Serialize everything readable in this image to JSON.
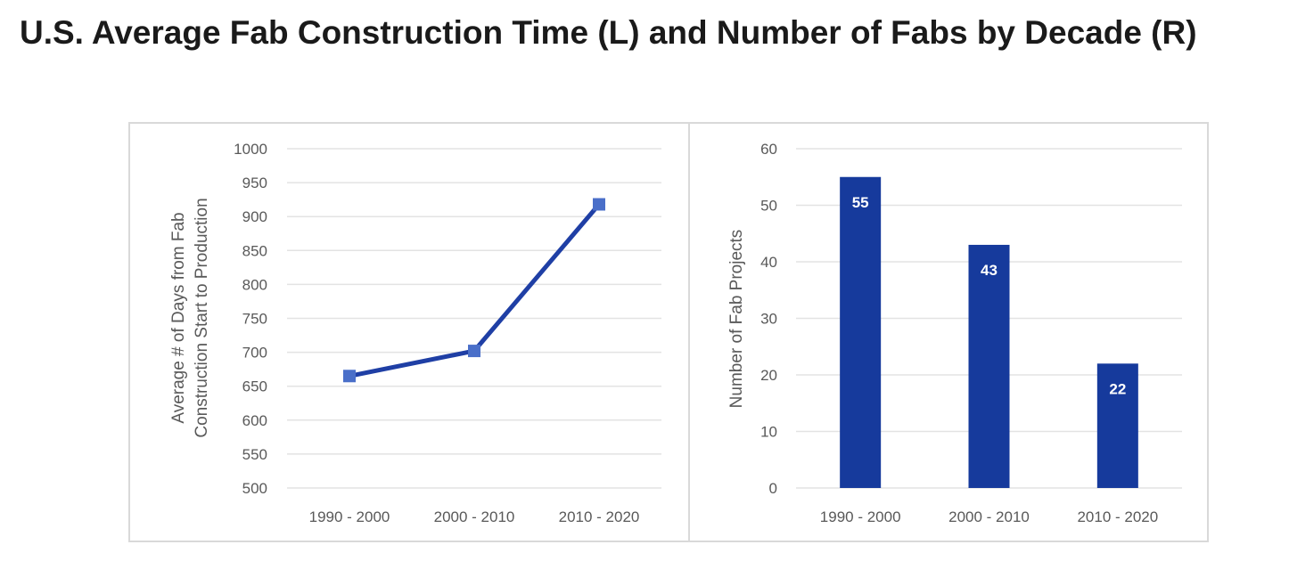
{
  "title": "U.S. Average Fab Construction Time (L) and Number of Fabs by Decade (R)",
  "colors": {
    "line": "#1f3fa5",
    "marker": "#4a6fc9",
    "bar": "#163a9c",
    "grid": "#e3e3e3",
    "text": "#595959"
  },
  "chart_data": [
    {
      "type": "line",
      "categories": [
        "1990 - 2000",
        "2000 - 2010",
        "2010 - 2020"
      ],
      "series": [
        {
          "values": [
            665,
            702,
            918
          ]
        }
      ],
      "ylabel_lines": [
        "Average # of Days from Fab",
        "Construction Start to Production"
      ],
      "ylim": [
        500,
        1000
      ],
      "yticks": [
        500,
        550,
        600,
        650,
        700,
        750,
        800,
        850,
        900,
        950,
        1000
      ],
      "grid": true
    },
    {
      "type": "bar",
      "categories": [
        "1990 - 2000",
        "2000 - 2010",
        "2010 - 2020"
      ],
      "values": [
        55,
        43,
        22
      ],
      "data_labels": [
        "55",
        "43",
        "22"
      ],
      "ylabel": "Number of Fab Projects",
      "ylim": [
        0,
        60
      ],
      "yticks": [
        0,
        10,
        20,
        30,
        40,
        50,
        60
      ],
      "grid": true
    }
  ]
}
